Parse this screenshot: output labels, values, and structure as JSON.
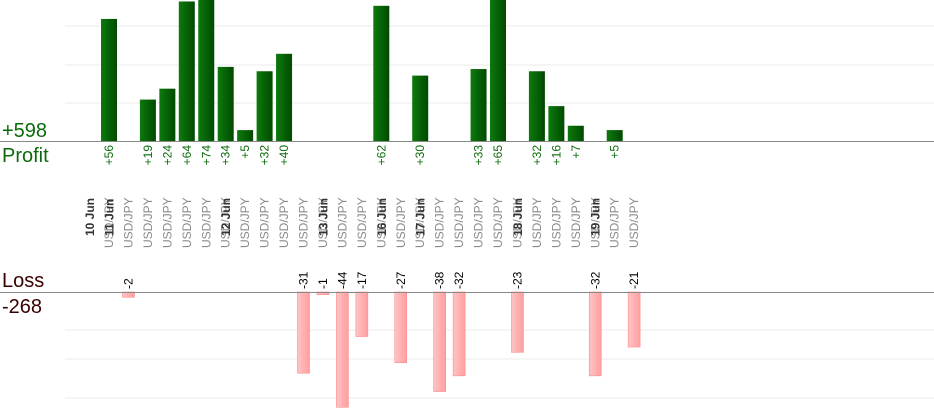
{
  "summary": {
    "profit_total": "+598",
    "profit_label": "Profit",
    "loss_label": "Loss",
    "loss_total": "-268"
  },
  "colors": {
    "profit": "#0b6b0b",
    "loss": "#ffb3b3",
    "profit_text": "#0b6b0b",
    "loss_text": "#3a0000"
  },
  "chart_data": {
    "type": "bar",
    "columns": [
      {
        "date": "10 Jun",
        "pair": "USD/JPY",
        "value": 56
      },
      {
        "date": "11 Jun",
        "pair": "USD/JPY",
        "value": -2
      },
      {
        "date": "",
        "pair": "USD/JPY",
        "value": 19
      },
      {
        "date": "",
        "pair": "USD/JPY",
        "value": 24
      },
      {
        "date": "",
        "pair": "USD/JPY",
        "value": 64
      },
      {
        "date": "",
        "pair": "USD/JPY",
        "value": 74
      },
      {
        "date": "",
        "pair": "USD/JPY",
        "value": 34
      },
      {
        "date": "12 Jun",
        "pair": "USD/JPY",
        "value": 5
      },
      {
        "date": "",
        "pair": "USD/JPY",
        "value": 32
      },
      {
        "date": "",
        "pair": "USD/JPY",
        "value": 40
      },
      {
        "date": "",
        "pair": "USD/JPY",
        "value": -31
      },
      {
        "date": "",
        "pair": "USD/JPY",
        "value": -1
      },
      {
        "date": "13 Jun",
        "pair": "USD/JPY",
        "value": -44
      },
      {
        "date": "",
        "pair": "USD/JPY",
        "value": -17
      },
      {
        "date": "",
        "pair": "USD/JPY",
        "value": 62
      },
      {
        "date": "16 Jun",
        "pair": "USD/JPY",
        "value": -27
      },
      {
        "date": "",
        "pair": "USD/JPY",
        "value": 30
      },
      {
        "date": "17 Jun",
        "pair": "USD/JPY",
        "value": -38
      },
      {
        "date": "",
        "pair": "USD/JPY",
        "value": -32
      },
      {
        "date": "",
        "pair": "USD/JPY",
        "value": 33
      },
      {
        "date": "",
        "pair": "USD/JPY",
        "value": 65
      },
      {
        "date": "",
        "pair": "USD/JPY",
        "value": -23
      },
      {
        "date": "18 Jun",
        "pair": "USD/JPY",
        "value": 32
      },
      {
        "date": "",
        "pair": "USD/JPY",
        "value": 16
      },
      {
        "date": "",
        "pair": "USD/JPY",
        "value": 7
      },
      {
        "date": "",
        "pair": "USD/JPY",
        "value": -32
      },
      {
        "date": "19 Jun",
        "pair": "USD/JPY",
        "value": 5
      },
      {
        "date": "",
        "pair": "USD/JPY",
        "value": -21
      }
    ]
  }
}
